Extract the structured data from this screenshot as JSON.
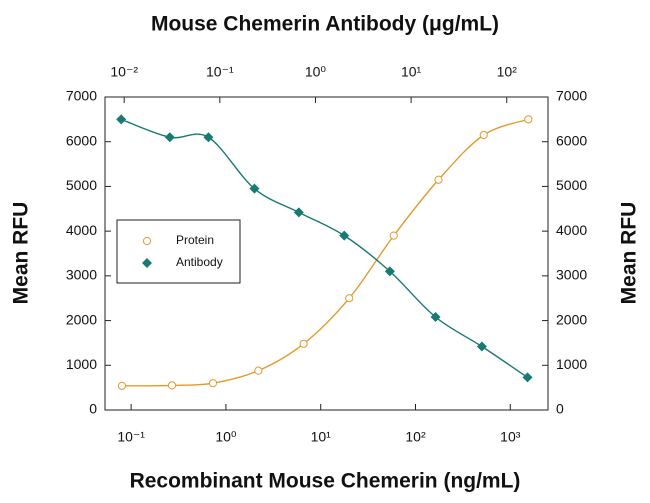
{
  "chart_data": {
    "type": "scatter",
    "title": "Mouse Chemerin Antibody (μg/mL)",
    "x_label": "Recombinant Mouse Chemerin (ng/mL)",
    "y_label": "Mean RFU",
    "y2_label": "Mean RFU",
    "xscale": "log",
    "x2scale": "log",
    "xlim": [
      0.053,
      2500
    ],
    "xticks": [
      {
        "value": 0.1,
        "label": "10⁻¹"
      },
      {
        "value": 1,
        "label": "10⁰"
      },
      {
        "value": 10,
        "label": "10¹"
      },
      {
        "value": 100,
        "label": "10²"
      },
      {
        "value": 1000,
        "label": "10³"
      }
    ],
    "x2lim": [
      0.0063,
      270
    ],
    "x2ticks": [
      {
        "value": 0.01,
        "label": "10⁻²"
      },
      {
        "value": 0.1,
        "label": "10⁻¹"
      },
      {
        "value": 1,
        "label": "10⁰"
      },
      {
        "value": 10,
        "label": "10¹"
      },
      {
        "value": 100,
        "label": "10²"
      }
    ],
    "ylim": [
      0,
      7000
    ],
    "yticks": [
      0,
      1000,
      2000,
      3000,
      4000,
      5000,
      6000,
      7000
    ],
    "y2lim": [
      0,
      7000
    ],
    "y2ticks": [
      0,
      1000,
      2000,
      3000,
      4000,
      5000,
      6000,
      7000
    ],
    "legend": "center-left",
    "series": [
      {
        "name": "Protein",
        "color": "#e39a2d",
        "marker": "open-circle",
        "axis": "x",
        "x": [
          0.08,
          0.27,
          0.73,
          2.2,
          6.6,
          20,
          59,
          175,
          525,
          1550
        ],
        "values": [
          540,
          550,
          600,
          880,
          1480,
          2500,
          3900,
          5150,
          6150,
          6500
        ]
      },
      {
        "name": "Antibody",
        "color": "#177a73",
        "marker": "diamond",
        "axis": "x2",
        "x": [
          0.0093,
          0.03,
          0.076,
          0.23,
          0.67,
          2.0,
          6.0,
          18,
          55,
          165
        ],
        "values": [
          6500,
          6100,
          6100,
          4950,
          4420,
          3900,
          3100,
          2080,
          1420,
          730
        ]
      }
    ]
  }
}
